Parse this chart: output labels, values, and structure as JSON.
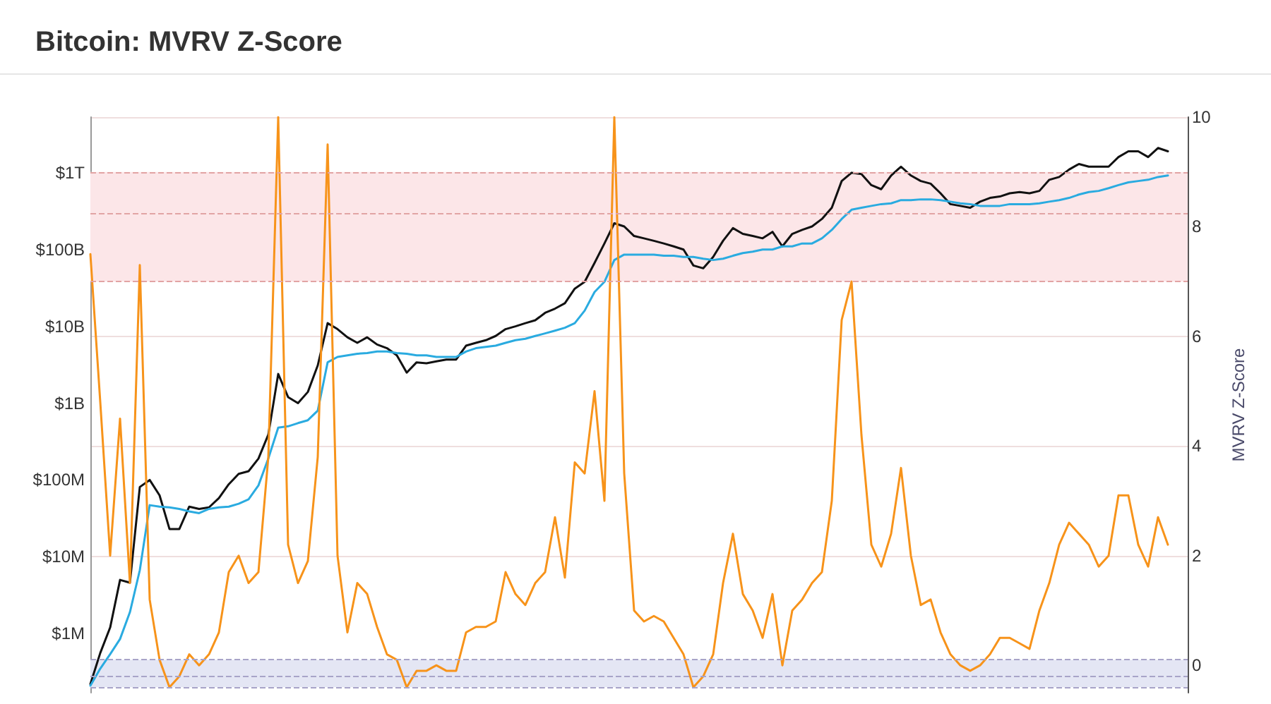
{
  "chart_data": {
    "type": "line",
    "title": "Bitcoin: MVRV Z-Score",
    "y2label": "MVRV Z-Score",
    "categories": [
      null,
      null,
      null,
      null,
      null,
      null,
      null,
      null,
      null,
      null,
      null,
      null,
      null,
      null,
      null,
      null,
      null,
      null,
      null,
      null,
      null,
      null,
      null,
      null,
      null,
      null,
      null,
      null,
      null,
      null,
      null,
      null,
      null,
      null,
      null,
      null,
      null,
      null,
      null,
      null,
      null,
      null,
      null,
      null,
      null,
      null,
      null,
      null,
      null,
      null,
      null,
      null,
      null,
      null,
      null,
      null,
      null,
      null,
      null,
      null,
      null,
      null,
      null,
      null,
      null,
      null,
      null,
      null,
      null,
      null,
      null,
      null,
      null,
      null,
      null,
      null,
      null,
      null,
      null,
      null,
      null,
      null,
      null,
      null,
      null,
      null,
      null,
      null,
      null,
      null,
      null,
      null,
      null,
      null,
      null,
      null,
      null,
      null,
      null,
      null,
      null,
      null,
      null,
      null,
      null,
      null,
      null,
      null,
      null,
      null,
      null,
      null
    ],
    "series": [
      {
        "color": "#111111",
        "values": [
          220000.0,
          560000.0,
          1200000.0,
          5000000.0,
          4600000.0,
          81000000.0,
          100000000.0,
          63000000.0,
          23000000.0,
          23000000.0,
          45000000.0,
          42000000.0,
          44000000.0,
          58000000.0,
          88000000.0,
          120000000.0,
          130000000.0,
          190000000.0,
          390000000.0,
          2400000000.0,
          1200000000.0,
          1000000000.0,
          1400000000.0,
          3100000000.0,
          11000000000.0,
          9200000000.0,
          7200000000.0,
          6100000000.0,
          7200000000.0,
          5800000000.0,
          5200000000.0,
          4200000000.0,
          2500000000.0,
          3400000000.0,
          3300000000.0,
          3500000000.0,
          3700000000.0,
          3700000000.0,
          5600000000.0,
          6100000000.0,
          6600000000.0,
          7500000000.0,
          9200000000.0,
          10000000000.0,
          11000000000.0,
          12000000000.0,
          15000000000.0,
          17000000000.0,
          20000000000.0,
          31000000000.0,
          38000000000.0,
          67000000000.0,
          120000000000.0,
          220000000000.0,
          200000000000.0,
          150000000000.0,
          140000000000.0,
          130000000000.0,
          120000000000.0,
          110000000000.0,
          100000000000.0,
          62000000000.0,
          57000000000.0,
          80000000000.0,
          130000000000.0,
          190000000000.0,
          160000000000.0,
          150000000000.0,
          140000000000.0,
          170000000000.0,
          110000000000.0,
          160000000000.0,
          180000000000.0,
          200000000000.0,
          250000000000.0,
          350000000000.0,
          780000000000.0,
          1000000000000.0,
          960000000000.0,
          690000000000.0,
          610000000000.0,
          920000000000.0,
          1200000000000.0,
          920000000000.0,
          780000000000.0,
          720000000000.0,
          540000000000.0,
          390000000000.0,
          370000000000.0,
          350000000000.0,
          420000000000.0,
          470000000000.0,
          490000000000.0,
          540000000000.0,
          560000000000.0,
          540000000000.0,
          580000000000.0,
          810000000000.0,
          880000000000.0,
          1100000000000.0,
          1300000000000.0,
          1200000000000.0,
          1200000000000.0,
          1200000000000.0,
          1600000000000.0,
          1900000000000.0,
          1900000000000.0,
          1600000000000.0,
          2100000000000.0,
          1900000000000.0,
          null,
          null
        ]
      },
      {
        "color": "#2aabe0",
        "values": [
          210000.0,
          350000.0,
          540000.0,
          850000.0,
          1900000.0,
          6700000.0,
          47000000.0,
          45000000.0,
          44000000.0,
          42000000.0,
          39000000.0,
          37000000.0,
          42000000.0,
          44000000.0,
          45000000.0,
          49000000.0,
          56000000.0,
          85000000.0,
          190000000.0,
          480000000.0,
          500000000.0,
          550000000.0,
          600000000.0,
          800000000.0,
          3400000000.0,
          4000000000.0,
          4200000000.0,
          4400000000.0,
          4500000000.0,
          4700000000.0,
          4700000000.0,
          4500000000.0,
          4400000000.0,
          4200000000.0,
          4200000000.0,
          4000000000.0,
          4000000000.0,
          4000000000.0,
          4700000000.0,
          5200000000.0,
          5400000000.0,
          5600000000.0,
          6100000000.0,
          6600000000.0,
          6900000000.0,
          7500000000.0,
          8100000000.0,
          8800000000.0,
          9600000000.0,
          11000000000.0,
          16000000000.0,
          28000000000.0,
          38000000000.0,
          73000000000.0,
          86000000000.0,
          86000000000.0,
          86000000000.0,
          86000000000.0,
          83000000000.0,
          83000000000.0,
          80000000000.0,
          80000000000.0,
          76000000000.0,
          73000000000.0,
          76000000000.0,
          83000000000.0,
          90000000000.0,
          94000000000.0,
          100000000000.0,
          100000000000.0,
          110000000000.0,
          110000000000.0,
          120000000000.0,
          120000000000.0,
          140000000000.0,
          180000000000.0,
          250000000000.0,
          330000000000.0,
          350000000000.0,
          370000000000.0,
          390000000000.0,
          400000000000.0,
          440000000000.0,
          440000000000.0,
          450000000000.0,
          450000000000.0,
          440000000000.0,
          420000000000.0,
          400000000000.0,
          390000000000.0,
          370000000000.0,
          370000000000.0,
          370000000000.0,
          390000000000.0,
          390000000000.0,
          390000000000.0,
          400000000000.0,
          420000000000.0,
          440000000000.0,
          470000000000.0,
          520000000000.0,
          560000000000.0,
          580000000000.0,
          630000000000.0,
          690000000000.0,
          750000000000.0,
          780000000000.0,
          810000000000.0,
          880000000000.0,
          920000000000.0,
          null,
          null
        ]
      },
      {
        "color": "#f7931a",
        "axis": "y2",
        "values": [
          7.5,
          4.8,
          2.0,
          4.5,
          1.5,
          7.3,
          1.2,
          0.1,
          -0.4,
          -0.2,
          0.2,
          0.0,
          0.2,
          0.6,
          1.7,
          2.0,
          1.5,
          1.7,
          3.8,
          10,
          2.2,
          1.5,
          1.9,
          3.8,
          9.5,
          2.0,
          0.6,
          1.5,
          1.3,
          0.7,
          0.2,
          0.1,
          -0.4,
          -0.1,
          -0.1,
          0.0,
          -0.1,
          -0.1,
          0.6,
          0.7,
          0.7,
          0.8,
          1.7,
          1.3,
          1.1,
          1.5,
          1.7,
          2.7,
          1.6,
          3.7,
          3.5,
          5.0,
          3.0,
          10,
          3.5,
          1.0,
          0.8,
          0.9,
          0.8,
          0.5,
          0.2,
          -0.4,
          -0.2,
          0.2,
          1.5,
          2.4,
          1.3,
          1.0,
          0.5,
          1.3,
          0.0,
          1.0,
          1.2,
          1.5,
          1.7,
          3.0,
          6.3,
          7.0,
          4.2,
          2.2,
          1.8,
          2.4,
          3.6,
          2.0,
          1.1,
          1.2,
          0.6,
          0.2,
          0.0,
          -0.1,
          0.0,
          0.2,
          0.5,
          0.5,
          0.4,
          0.3,
          1.0,
          1.5,
          2.2,
          2.6,
          2.4,
          2.2,
          1.8,
          2.0,
          3.1,
          3.1,
          2.2,
          1.8,
          2.7,
          2.2,
          null,
          null
        ]
      }
    ],
    "log": "y",
    "ylim": [
      170000,
      5300000000000
    ],
    "yticks": [
      {
        "value": 1000000,
        "label": "$1M"
      },
      {
        "value": 10000000,
        "label": "$10M"
      },
      {
        "value": 100000000,
        "label": "$100M"
      },
      {
        "value": 1000000000,
        "label": "$1B"
      },
      {
        "value": 10000000000,
        "label": "$10B"
      },
      {
        "value": 100000000000,
        "label": "$100B"
      },
      {
        "value": 1000000000000,
        "label": "$1T"
      }
    ],
    "y2lim": [
      -0.5,
      10
    ],
    "y2ticks": [
      0,
      2,
      4,
      6,
      8,
      10
    ],
    "grid": "y2",
    "bands": [
      {
        "axis": "y2",
        "from": 7,
        "to": 9,
        "color": "#fce6e8"
      },
      {
        "axis": "y2",
        "from": -0.4,
        "to": 0.1,
        "color": "#e4e6f4"
      }
    ],
    "ref_lines": [
      {
        "axis": "y2",
        "value": 9,
        "color": "#e2a4a4",
        "line_style": "dashed"
      },
      {
        "axis": "y2",
        "value": 8.25,
        "color": "#e2a4a4",
        "line_style": "dashed"
      },
      {
        "axis": "y2",
        "value": 7,
        "color": "#e2a4a4",
        "line_style": "dashed"
      },
      {
        "axis": "y2",
        "value": 0.1,
        "color": "#a8a4c8",
        "line_style": "dashed"
      },
      {
        "axis": "y2",
        "value": -0.2,
        "color": "#a8a4c8",
        "line_style": "dashed"
      },
      {
        "axis": "y2",
        "value": -0.4,
        "color": "#a8a4c8",
        "line_style": "dashed"
      }
    ]
  }
}
